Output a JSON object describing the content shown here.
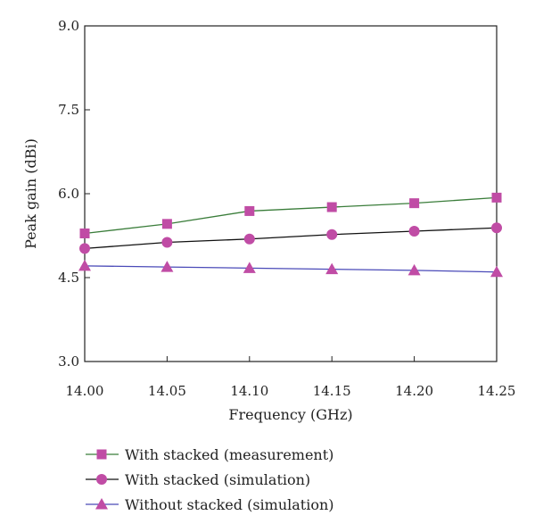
{
  "chart_data": {
    "type": "line",
    "title": "",
    "xlabel": "Frequency (GHz)",
    "ylabel": "Peak gain (dBi)",
    "xlim": [
      14.0,
      14.25
    ],
    "ylim": [
      3.0,
      9.0
    ],
    "xticks": [
      "14.00",
      "14.05",
      "14.10",
      "14.15",
      "14.20",
      "14.25"
    ],
    "yticks": [
      "3.0",
      "4.5",
      "6.0",
      "7.5",
      "9.0"
    ],
    "grid": false,
    "legend_position": "bottom",
    "x": [
      14.0,
      14.05,
      14.1,
      14.15,
      14.2,
      14.25
    ],
    "series": [
      {
        "name": "With stacked (measurement)",
        "values": [
          5.29,
          5.46,
          5.69,
          5.76,
          5.83,
          5.93
        ],
        "line_color": "#3a7d3a",
        "marker": "square",
        "marker_color": "#c04ca5"
      },
      {
        "name": "With stacked (simulation)",
        "values": [
          5.02,
          5.13,
          5.19,
          5.27,
          5.33,
          5.39
        ],
        "line_color": "#111111",
        "marker": "circle",
        "marker_color": "#c04ca5"
      },
      {
        "name": "Without stacked (simulation)",
        "values": [
          4.71,
          4.69,
          4.67,
          4.65,
          4.63,
          4.6
        ],
        "line_color": "#4a4ab8",
        "marker": "triangle",
        "marker_color": "#c04ca5"
      }
    ]
  }
}
